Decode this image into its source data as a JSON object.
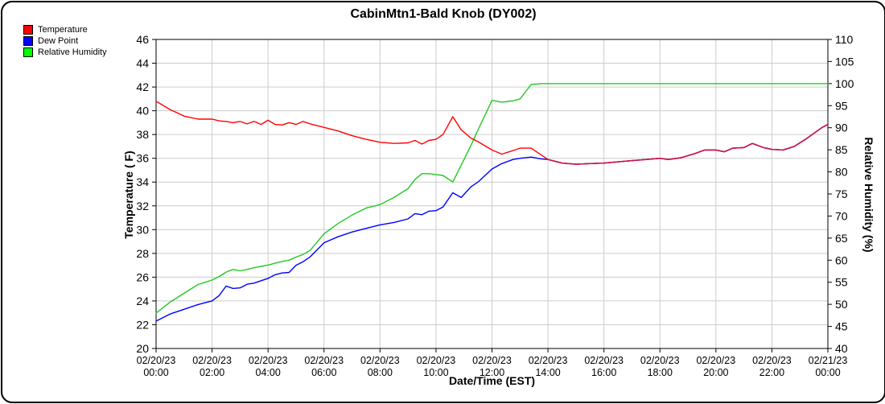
{
  "title": "CabinMtn1-Bald Knob (DY002)",
  "legend": [
    {
      "label": "Temperature",
      "color": "#ff0000"
    },
    {
      "label": "Dew Point",
      "color": "#0000ff"
    },
    {
      "label": "Relative Humidity",
      "color": "#00ff00"
    }
  ],
  "axes": {
    "left_title": "Temperature ( F)",
    "right_title": "Relative Humidity (%)",
    "x_title": "Date/Time (EST)"
  },
  "chart_data": {
    "type": "line",
    "title": "CabinMtn1-Bald Knob (DY002)",
    "xlabel": "Date/Time (EST)",
    "grid": "on",
    "legend_position": "top-left",
    "y_left": {
      "label": "Temperature ( F)",
      "min": 20,
      "max": 46,
      "tick_step": 2,
      "ticks": [
        20,
        22,
        24,
        26,
        28,
        30,
        32,
        34,
        36,
        38,
        40,
        42,
        44,
        46
      ]
    },
    "y_right": {
      "label": "Relative Humidity (%)",
      "min": 40,
      "max": 110,
      "tick_step": 5,
      "ticks": [
        40,
        45,
        50,
        55,
        60,
        65,
        70,
        75,
        80,
        85,
        90,
        95,
        100,
        105,
        110
      ]
    },
    "x_tick_labels": [
      {
        "date": "02/20/23",
        "time": "00:00"
      },
      {
        "date": "02/20/23",
        "time": "02:00"
      },
      {
        "date": "02/20/23",
        "time": "04:00"
      },
      {
        "date": "02/20/23",
        "time": "06:00"
      },
      {
        "date": "02/20/23",
        "time": "08:00"
      },
      {
        "date": "02/20/23",
        "time": "10:00"
      },
      {
        "date": "02/20/23",
        "time": "12:00"
      },
      {
        "date": "02/20/23",
        "time": "14:00"
      },
      {
        "date": "02/20/23",
        "time": "16:00"
      },
      {
        "date": "02/20/23",
        "time": "18:00"
      },
      {
        "date": "02/20/23",
        "time": "20:00"
      },
      {
        "date": "02/20/23",
        "time": "22:00"
      },
      {
        "date": "02/21/23",
        "time": "00:00"
      }
    ],
    "x_hours": [
      0,
      0.5,
      1,
      1.5,
      2,
      2.25,
      2.5,
      2.75,
      3,
      3.25,
      3.5,
      3.75,
      4,
      4.25,
      4.5,
      4.75,
      5,
      5.25,
      5.5,
      6,
      6.5,
      7,
      7.5,
      8,
      8.5,
      9,
      9.25,
      9.5,
      9.75,
      10,
      10.25,
      10.6,
      10.9,
      11.25,
      11.5,
      12,
      12.35,
      12.75,
      13,
      13.4,
      13.75,
      14,
      14.5,
      15,
      15.5,
      16,
      16.5,
      17,
      17.5,
      18,
      18.3,
      18.75,
      19.25,
      19.6,
      20,
      20.3,
      20.6,
      21,
      21.3,
      21.7,
      22,
      22.4,
      22.8,
      23.2,
      23.5,
      23.8,
      24
    ],
    "series": [
      {
        "name": "Temperature",
        "axis": "left",
        "color": "#ff0000",
        "values": [
          40.8,
          40.1,
          39.55,
          39.3,
          39.3,
          39.15,
          39.1,
          39.0,
          39.1,
          38.9,
          39.1,
          38.85,
          39.2,
          38.85,
          38.8,
          39.0,
          38.85,
          39.1,
          38.9,
          38.6,
          38.3,
          37.9,
          37.6,
          37.35,
          37.25,
          37.3,
          37.5,
          37.2,
          37.5,
          37.6,
          38.0,
          39.5,
          38.4,
          37.7,
          37.4,
          36.7,
          36.35,
          36.65,
          36.85,
          36.85,
          36.3,
          35.9,
          35.6,
          35.5,
          35.55,
          35.6,
          35.7,
          35.8,
          35.9,
          36.0,
          35.9,
          36.05,
          36.4,
          36.7,
          36.7,
          36.55,
          36.85,
          36.9,
          37.25,
          36.9,
          36.75,
          36.7,
          37.0,
          37.6,
          38.1,
          38.6,
          38.85
        ]
      },
      {
        "name": "Dew Point",
        "axis": "left",
        "color": "#0000ff",
        "values": [
          22.3,
          22.9,
          23.3,
          23.7,
          24.0,
          24.45,
          25.25,
          25.05,
          25.1,
          25.4,
          25.5,
          25.7,
          25.9,
          26.2,
          26.35,
          26.4,
          27.0,
          27.3,
          27.7,
          28.9,
          29.4,
          29.8,
          30.1,
          30.4,
          30.6,
          30.9,
          31.35,
          31.25,
          31.55,
          31.6,
          31.9,
          33.1,
          32.7,
          33.6,
          34.0,
          35.1,
          35.55,
          35.9,
          36.0,
          36.1,
          35.95,
          35.9,
          35.6,
          35.5,
          35.55,
          35.6,
          35.7,
          35.8,
          35.9,
          36.0,
          35.9,
          36.05,
          36.4,
          36.7,
          36.7,
          36.55,
          36.85,
          36.9,
          37.25,
          36.9,
          36.75,
          36.7,
          37.0,
          37.6,
          38.1,
          38.6,
          38.85
        ]
      },
      {
        "name": "Relative Humidity",
        "axis": "right",
        "color": "#22c822",
        "values": [
          48,
          50.5,
          52.5,
          54.5,
          55.5,
          56.3,
          57.3,
          57.9,
          57.6,
          57.9,
          58.3,
          58.6,
          58.9,
          59.3,
          59.7,
          60.0,
          60.7,
          61.3,
          62.2,
          66.0,
          68.3,
          70.2,
          71.8,
          72.6,
          74.2,
          76.2,
          78.3,
          79.6,
          79.6,
          79.4,
          79.2,
          77.7,
          81.5,
          86.0,
          89.5,
          96.2,
          95.8,
          96.1,
          96.5,
          99.8,
          100,
          100,
          100,
          100,
          100,
          100,
          100,
          100,
          100,
          100,
          100,
          100,
          100,
          100,
          100,
          100,
          100,
          100,
          100,
          100,
          100,
          100,
          100,
          100,
          100,
          100,
          100
        ]
      }
    ],
    "merged_line_color": "#c81446",
    "grid_color": "#cccccc"
  }
}
